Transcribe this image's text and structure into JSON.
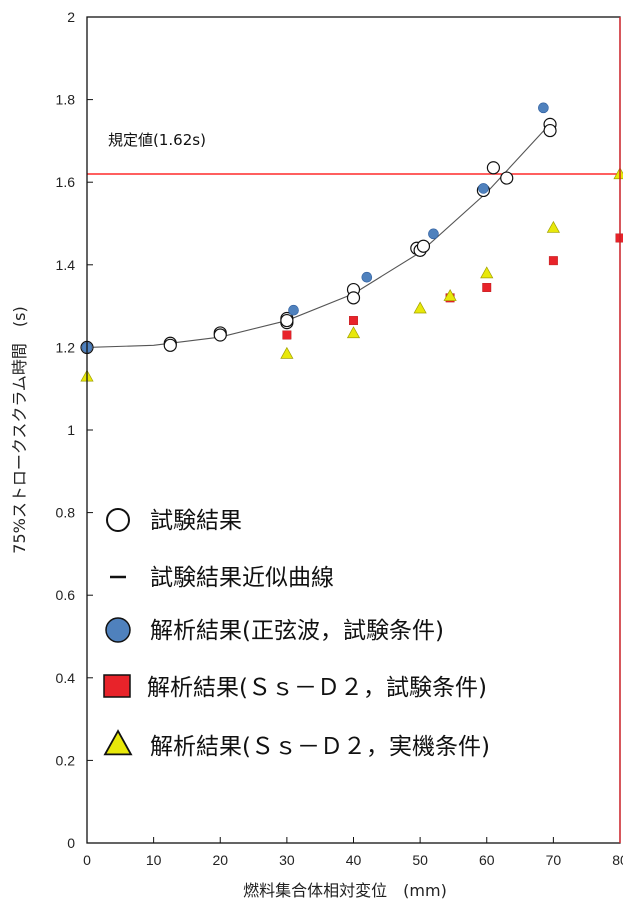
{
  "chart_data": {
    "type": "scatter",
    "xlabel": "燃料集合体相対変位　(mm)",
    "ylabel": "75%ストロークスクラム時間　(s)",
    "xlim": [
      0,
      80
    ],
    "ylim": [
      0,
      2
    ],
    "x_ticks": [
      0,
      10,
      20,
      30,
      40,
      50,
      60,
      70,
      80
    ],
    "y_ticks": [
      0,
      0.2,
      0.4,
      0.6,
      0.8,
      1,
      1.2,
      1.4,
      1.6,
      1.8,
      2
    ],
    "reference_line": {
      "label": "規定値(1.62s)",
      "value": 1.62,
      "color": "#ff2a2a"
    },
    "series": [
      {
        "name": "試験結果",
        "marker": "open-circle",
        "points": [
          [
            0,
            1.2
          ],
          [
            12.5,
            1.21
          ],
          [
            12.5,
            1.205
          ],
          [
            20,
            1.235
          ],
          [
            20,
            1.23
          ],
          [
            30,
            1.27
          ],
          [
            30,
            1.26
          ],
          [
            30,
            1.265
          ],
          [
            40,
            1.34
          ],
          [
            40,
            1.32
          ],
          [
            49.5,
            1.44
          ],
          [
            50,
            1.435
          ],
          [
            50.5,
            1.445
          ],
          [
            59.5,
            1.58
          ],
          [
            61,
            1.635
          ],
          [
            63,
            1.61
          ],
          [
            69.5,
            1.74
          ],
          [
            69.5,
            1.725
          ]
        ]
      },
      {
        "name": "試験結果近似曲線",
        "marker": "line",
        "points": [
          [
            0,
            1.2
          ],
          [
            10,
            1.205
          ],
          [
            20,
            1.225
          ],
          [
            30,
            1.265
          ],
          [
            40,
            1.33
          ],
          [
            50,
            1.43
          ],
          [
            60,
            1.575
          ],
          [
            70,
            1.75
          ]
        ]
      },
      {
        "name": "解析結果(正弦波，試験条件)",
        "marker": "blue-circle",
        "color": "#4f81bd",
        "points": [
          [
            0,
            1.2
          ],
          [
            31,
            1.29
          ],
          [
            42,
            1.37
          ],
          [
            52,
            1.475
          ],
          [
            59.5,
            1.585
          ],
          [
            68.5,
            1.78
          ]
        ]
      },
      {
        "name": "解析結果(Ｓｓ－Ｄ２，試験条件)",
        "marker": "red-square",
        "color": "#e8232a",
        "points": [
          [
            30,
            1.23
          ],
          [
            40,
            1.265
          ],
          [
            54.5,
            1.32
          ],
          [
            60,
            1.345
          ],
          [
            70,
            1.41
          ],
          [
            80,
            1.465
          ]
        ]
      },
      {
        "name": "解析結果(Ｓｓ－Ｄ２，実機条件)",
        "marker": "yellow-triangle",
        "color": "#e8e80a",
        "points": [
          [
            0,
            1.13
          ],
          [
            30,
            1.185
          ],
          [
            40,
            1.235
          ],
          [
            50,
            1.295
          ],
          [
            54.5,
            1.325
          ],
          [
            60,
            1.38
          ],
          [
            70,
            1.49
          ],
          [
            80,
            1.62
          ]
        ]
      }
    ],
    "legend": {
      "placement": "lower-left",
      "items": [
        {
          "marker": "open-circle",
          "label": "試験結果"
        },
        {
          "marker": "line",
          "label": "試験結果近似曲線"
        },
        {
          "marker": "blue-circle",
          "label": "解析結果(正弦波，試験条件)"
        },
        {
          "marker": "red-square",
          "label": "解析結果(Ｓｓ－Ｄ２，試験条件)"
        },
        {
          "marker": "yellow-triangle",
          "label": "解析結果(Ｓｓ－Ｄ２，実機条件)"
        }
      ]
    }
  }
}
